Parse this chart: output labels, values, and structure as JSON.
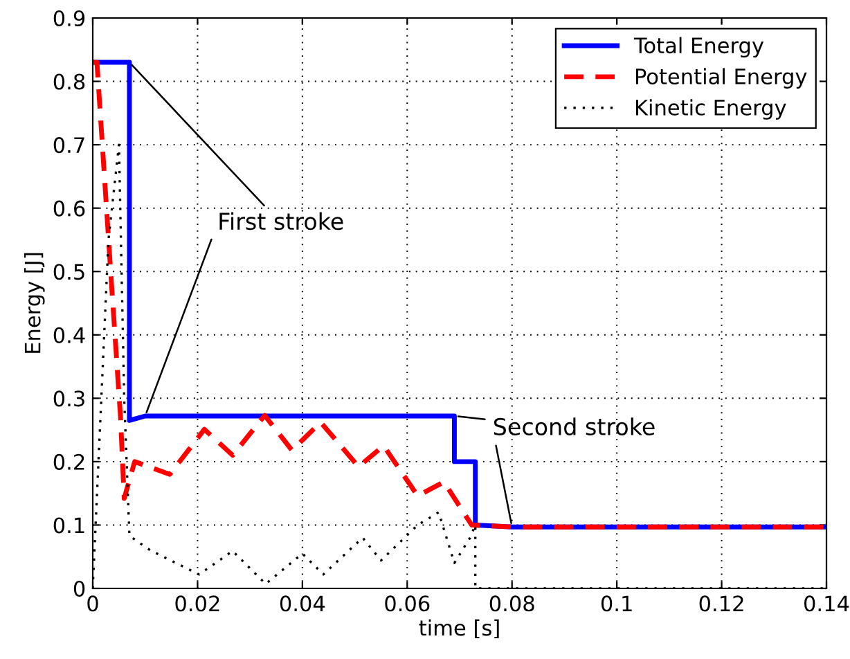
{
  "chart_data": {
    "type": "line",
    "xlabel": "time [s]",
    "ylabel": "Energy [J]",
    "xlim": [
      0,
      0.14
    ],
    "ylim": [
      0,
      0.9
    ],
    "xticks": [
      0,
      0.02,
      0.04,
      0.06,
      0.08,
      0.1,
      0.12,
      0.14
    ],
    "yticks": [
      0,
      0.1,
      0.2,
      0.3,
      0.4,
      0.5,
      0.6,
      0.7,
      0.8,
      0.9
    ],
    "grid": true,
    "legend": "top right",
    "annotations": [
      {
        "text": "First stroke",
        "x": 0.007,
        "y": 0.83
      },
      {
        "text": "Second stroke",
        "x": 0.069,
        "y": 0.272
      }
    ],
    "series": [
      {
        "name": "Total Energy",
        "color": "#0000ff",
        "line_style": "solid",
        "x": [
          0,
          0.007,
          0.007,
          0.01,
          0.069,
          0.069,
          0.073,
          0.073,
          0.08,
          0.14
        ],
        "values": [
          0.83,
          0.83,
          0.265,
          0.272,
          0.272,
          0.2,
          0.2,
          0.1,
          0.097,
          0.097
        ]
      },
      {
        "name": "Potential Energy",
        "color": "#ff0000",
        "line_style": "dashed",
        "x": [
          0,
          0.0008,
          0.0035,
          0.0053,
          0.006,
          0.008,
          0.0147,
          0.0213,
          0.0267,
          0.0328,
          0.038,
          0.0435,
          0.0507,
          0.0555,
          0.062,
          0.067,
          0.0723,
          0.08,
          0.14
        ],
        "values": [
          0.83,
          0.83,
          0.49,
          0.27,
          0.142,
          0.2,
          0.18,
          0.251,
          0.21,
          0.273,
          0.218,
          0.262,
          0.192,
          0.225,
          0.146,
          0.168,
          0.1,
          0.097,
          0.097
        ]
      },
      {
        "name": "Kinetic Energy",
        "color": "#000000",
        "line_style": "dotted",
        "x": [
          0,
          0.003,
          0.005,
          0.006,
          0.007,
          0.011,
          0.0203,
          0.0267,
          0.033,
          0.04,
          0.044,
          0.0515,
          0.055,
          0.062,
          0.066,
          0.069,
          0.072,
          0.073,
          0.073,
          0.14
        ],
        "values": [
          0,
          0.55,
          0.7,
          0.3,
          0.083,
          0.06,
          0.022,
          0.059,
          0.007,
          0.055,
          0.022,
          0.08,
          0.044,
          0.1,
          0.12,
          0.04,
          0.08,
          0.1,
          0,
          0
        ]
      }
    ]
  }
}
